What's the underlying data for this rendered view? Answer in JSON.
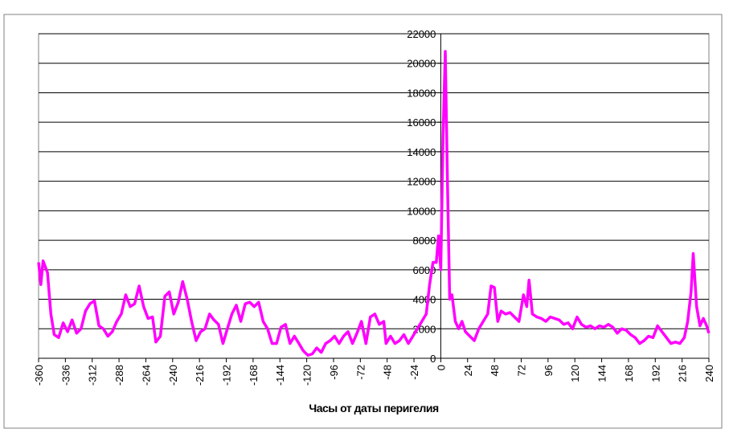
{
  "chart_data": {
    "type": "line",
    "x_label": "Часы от даты перигелия",
    "x": [
      -360,
      -358,
      -356,
      -352,
      -349,
      -346,
      -342,
      -338,
      -334,
      -330,
      -326,
      -322,
      -318,
      -314,
      -310,
      -306,
      -302,
      -298,
      -294,
      -290,
      -286,
      -282,
      -278,
      -274,
      -270,
      -266,
      -262,
      -258,
      -255,
      -251,
      -247,
      -243,
      -239,
      -235,
      -231,
      -227,
      -223,
      -219,
      -215,
      -211,
      -207,
      -203,
      -199,
      -195,
      -191,
      -187,
      -183,
      -179,
      -175,
      -171,
      -167,
      -163,
      -159,
      -155,
      -151,
      -147,
      -143,
      -139,
      -135,
      -131,
      -127,
      -123,
      -119,
      -115,
      -111,
      -107,
      -103,
      -99,
      -95,
      -91,
      -87,
      -83,
      -79,
      -75,
      -71,
      -67,
      -63,
      -59,
      -55,
      -51,
      -49,
      -45,
      -41,
      -37,
      -33,
      -29,
      -25,
      -21,
      -17,
      -13,
      -10,
      -7,
      -4,
      -2,
      0,
      2,
      4,
      6,
      8,
      10,
      13,
      16,
      19,
      22,
      26,
      30,
      34,
      38,
      42,
      45,
      48,
      51,
      54,
      58,
      62,
      66,
      70,
      74,
      77,
      79,
      82,
      86,
      90,
      94,
      98,
      102,
      106,
      110,
      114,
      118,
      122,
      126,
      130,
      134,
      138,
      142,
      146,
      150,
      154,
      158,
      162,
      166,
      170,
      174,
      178,
      182,
      186,
      190,
      194,
      198,
      202,
      206,
      210,
      214,
      218,
      221,
      224,
      226,
      229,
      232,
      235,
      238,
      240
    ],
    "series": [
      {
        "color": "#ff00ff",
        "values": [
          6500,
          5000,
          6600,
          5800,
          3000,
          1600,
          1400,
          2400,
          1800,
          2600,
          1700,
          2000,
          3200,
          3700,
          3900,
          2200,
          2000,
          1500,
          1800,
          2500,
          3000,
          4300,
          3500,
          3700,
          4900,
          3500,
          2700,
          2800,
          1100,
          1500,
          4200,
          4500,
          3000,
          3800,
          5200,
          4000,
          2500,
          1200,
          1800,
          2000,
          3000,
          2600,
          2300,
          1000,
          2000,
          3000,
          3600,
          2500,
          3700,
          3800,
          3500,
          3800,
          2500,
          2000,
          1000,
          1000,
          2100,
          2300,
          1000,
          1500,
          1000,
          500,
          200,
          300,
          700,
          400,
          1000,
          1200,
          1500,
          1000,
          1500,
          1800,
          1000,
          1700,
          2500,
          1000,
          2800,
          3000,
          2300,
          2500,
          1000,
          1500,
          1000,
          1200,
          1600,
          1000,
          1500,
          2000,
          2500,
          3000,
          5000,
          6500,
          6500,
          8300,
          6000,
          15000,
          20800,
          12000,
          4000,
          4300,
          2500,
          2000,
          2500,
          1800,
          1500,
          1200,
          2000,
          2500,
          3000,
          4900,
          4800,
          2500,
          3200,
          3000,
          3100,
          2800,
          2500,
          4300,
          3500,
          5300,
          3000,
          2800,
          2700,
          2500,
          2800,
          2700,
          2600,
          2300,
          2400,
          2000,
          2800,
          2300,
          2100,
          2200,
          2000,
          2200,
          2100,
          2300,
          2100,
          1700,
          2000,
          1900,
          1600,
          1400,
          1000,
          1200,
          1500,
          1400,
          2200,
          1800,
          1400,
          1000,
          1100,
          1000,
          1400,
          2500,
          4500,
          7100,
          3500,
          2200,
          2700,
          2200,
          1700
        ]
      }
    ],
    "xlim": [
      -360,
      240
    ],
    "xticks": [
      -360,
      -336,
      -312,
      -288,
      -264,
      -240,
      -216,
      -192,
      -168,
      -144,
      -120,
      -96,
      -72,
      -48,
      -24,
      0,
      24,
      48,
      72,
      96,
      120,
      144,
      168,
      192,
      216,
      240
    ],
    "ylim": [
      0,
      22000
    ],
    "yticks": [
      0,
      2000,
      4000,
      6000,
      8000,
      10000,
      12000,
      14000,
      16000,
      18000,
      20000,
      22000
    ],
    "grid": true
  }
}
